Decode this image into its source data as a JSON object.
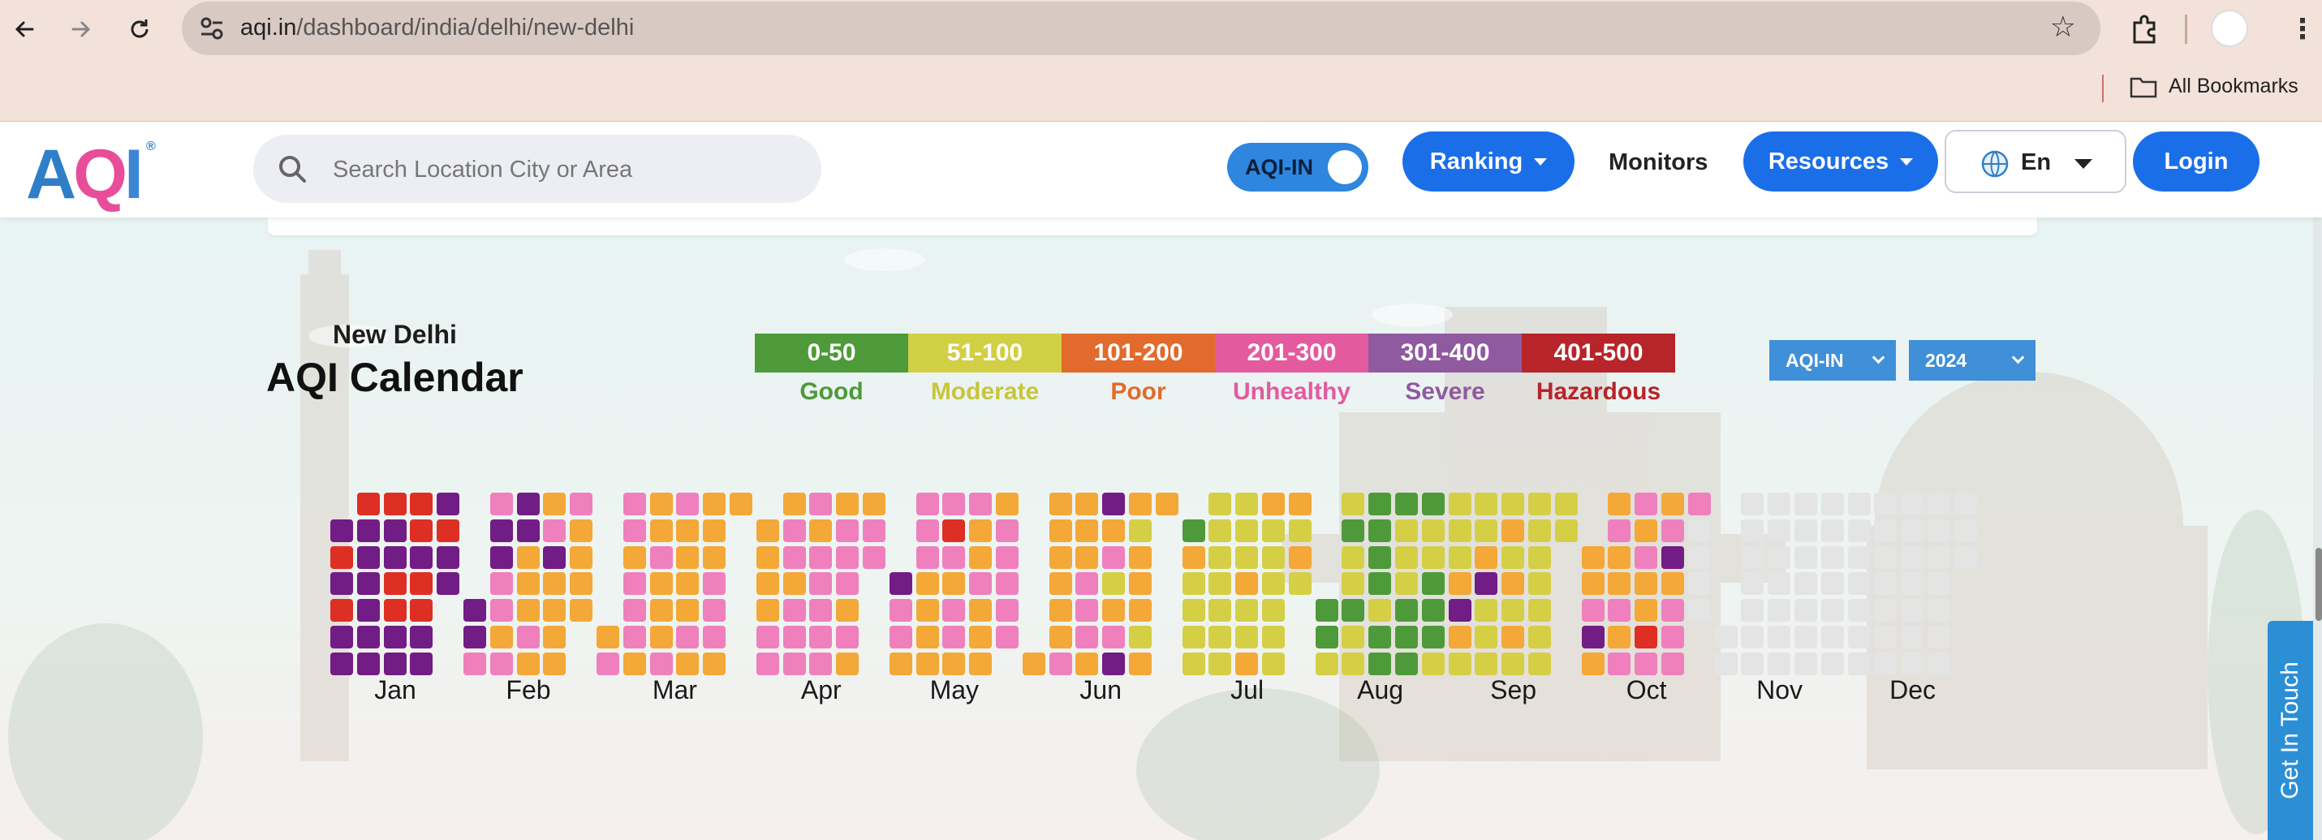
{
  "browser": {
    "url_host": "aqi.in",
    "url_path": "/dashboard/india/delhi/new-delhi",
    "bookmarks_label": "All Bookmarks"
  },
  "header": {
    "logo": "AQI",
    "logo_mark": "®",
    "search_placeholder": "Search Location City or Area",
    "toggle_label": "AQI-IN",
    "ranking": "Ranking",
    "monitors": "Monitors",
    "resources": "Resources",
    "language": "En",
    "login": "Login"
  },
  "calendar": {
    "city": "New Delhi",
    "title": "AQI Calendar",
    "index_select": "AQI-IN",
    "year_select": "2024",
    "legend": [
      {
        "range": "0-50",
        "label": "Good",
        "color": "#4e9a3a",
        "text_color": "#4e9a3a"
      },
      {
        "range": "51-100",
        "label": "Moderate",
        "color": "#d1cf44",
        "text_color": "#c8c63a"
      },
      {
        "range": "101-200",
        "label": "Poor",
        "color": "#e26a2c",
        "text_color": "#e26a2c"
      },
      {
        "range": "201-300",
        "label": "Unhealthy",
        "color": "#e45a9f",
        "text_color": "#e45a9f"
      },
      {
        "range": "301-400",
        "label": "Severe",
        "color": "#8f5aa0",
        "text_color": "#8f5aa0"
      },
      {
        "range": "401-500",
        "label": "Hazardous",
        "color": "#b7242a",
        "text_color": "#b7242a"
      }
    ],
    "cell_colors": {
      "g": "#4e9a3a",
      "m": "#d4cf45",
      "o": "#f3a837",
      "p": "#ef80bd",
      "v": "#721c85",
      "r": "#de2f24",
      "n": "#e4e4e4"
    },
    "months": [
      {
        "name": "Jan",
        "days": "vrvrvvrvvvvvvrvvrrvvrrvrrvvvrvvrvvvvrvvvrvvvvrvvv"
      },
      {
        "name": "Feb",
        "days": "vvppvvppopvvooopoopvoooopooooopopvpo"
      },
      {
        "name": "Mar",
        "days": "opppopppooopoooppoooopoooopppooooooooooo"
      },
      {
        "name": "Apr",
        "days": "ooooppoppoppppopppppopppopoopppoppooppooo"
      },
      {
        "name": "May",
        "days": "vppopppooooprpoppopoopoooopppppoopppopppp"
      },
      {
        "name": "Jun",
        "days": "ooooooopooopppovopmopvomooomoopooommoppmoopm"
      },
      {
        "name": "Jul",
        "days": "gommmmmmmmmmmmmmommoommmmmmomomommommmoom"
      },
      {
        "name": "Aug",
        "days": "ggmmgmmgmmggggmgggmmmggggmmgggmmmggmgmgggmmgmmgmm"
      },
      {
        "name": "Sep",
        "days": "mmmovommmovmmmmomomommmmmmmmmmommggmmmgmm"
      },
      {
        "name": "Oct",
        "days": "oopvoopoopoppopoorpopvopppp"
      },
      {
        "name": "Nov",
        "days": ""
      },
      {
        "name": "Dec",
        "days": ""
      }
    ]
  },
  "get_in_touch": "Get In Touch"
}
